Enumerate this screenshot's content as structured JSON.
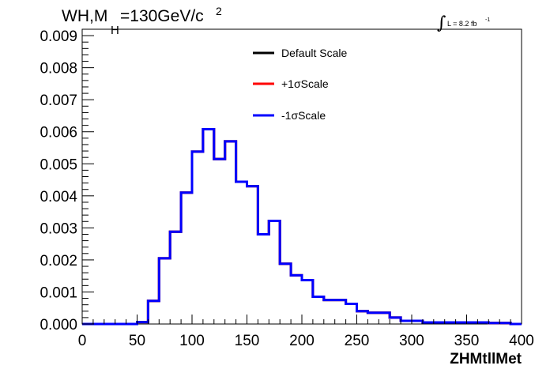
{
  "chart_data": {
    "type": "line",
    "title": {
      "main": "WH,M",
      "sub": "H",
      "value": "=130GeV/c",
      "sup": "2"
    },
    "luminosity": {
      "integral_symbol": "∫",
      "text": "L = 8.2 fb",
      "sup": "-1"
    },
    "xlabel": "ZHMtllMet",
    "ylabel": "",
    "xlim": [
      0,
      400
    ],
    "ylim": [
      0,
      0.0092
    ],
    "xticks": [
      0,
      50,
      100,
      150,
      200,
      250,
      300,
      350,
      400
    ],
    "xtick_labels": [
      "0",
      "50",
      "100",
      "150",
      "200",
      "250",
      "300",
      "350",
      "400"
    ],
    "yticks": [
      0,
      0.001,
      0.002,
      0.003,
      0.004,
      0.005,
      0.006,
      0.007,
      0.008,
      0.009
    ],
    "ytick_labels": [
      "0.000",
      "0.001",
      "0.002",
      "0.003",
      "0.004",
      "0.005",
      "0.006",
      "0.007",
      "0.008",
      "0.009"
    ],
    "bin_width": 10,
    "bin_lows": [
      0,
      10,
      20,
      30,
      40,
      50,
      60,
      70,
      80,
      90,
      100,
      110,
      120,
      130,
      140,
      150,
      160,
      170,
      180,
      190,
      200,
      210,
      220,
      230,
      240,
      250,
      260,
      270,
      280,
      290,
      300,
      310,
      320,
      330,
      340,
      350,
      360,
      370,
      380,
      390
    ],
    "legend_position": "top-center",
    "series": [
      {
        "name": "Default Scale",
        "color": "#000000",
        "values": [
          0.0,
          0.0,
          0.0,
          0.0,
          0.0,
          6e-05,
          0.00072,
          0.00205,
          0.00288,
          0.0041,
          0.00538,
          0.00608,
          0.00515,
          0.0057,
          0.00444,
          0.0043,
          0.0028,
          0.00322,
          0.00188,
          0.00152,
          0.00137,
          0.00085,
          0.00075,
          0.00075,
          0.00063,
          0.0004,
          0.00035,
          0.00035,
          0.0002,
          0.0001,
          0.0001,
          5e-05,
          5e-05,
          5e-05,
          5e-05,
          5e-05,
          5e-05,
          3e-05,
          3e-05,
          0.0
        ]
      },
      {
        "name": "+1σScale",
        "color": "#ff0000",
        "values": [
          0.0,
          0.0,
          0.0,
          0.0,
          0.0,
          6e-05,
          0.00072,
          0.00205,
          0.00288,
          0.0041,
          0.00538,
          0.00608,
          0.00515,
          0.0057,
          0.00444,
          0.0043,
          0.0028,
          0.00322,
          0.00188,
          0.00152,
          0.00137,
          0.00085,
          0.00075,
          0.00075,
          0.00063,
          0.0004,
          0.00035,
          0.00035,
          0.0002,
          0.0001,
          0.0001,
          5e-05,
          5e-05,
          5e-05,
          5e-05,
          5e-05,
          5e-05,
          3e-05,
          3e-05,
          0.0
        ]
      },
      {
        "name": "-1σScale",
        "color": "#0000ff",
        "values": [
          0.0,
          0.0,
          0.0,
          0.0,
          0.0,
          6e-05,
          0.00072,
          0.00205,
          0.00288,
          0.0041,
          0.00538,
          0.00608,
          0.00515,
          0.0057,
          0.00444,
          0.0043,
          0.0028,
          0.00322,
          0.00188,
          0.00152,
          0.00137,
          0.00085,
          0.00075,
          0.00075,
          0.00063,
          0.0004,
          0.00035,
          0.00035,
          0.0002,
          0.0001,
          0.0001,
          5e-05,
          5e-05,
          5e-05,
          5e-05,
          5e-05,
          5e-05,
          3e-05,
          3e-05,
          0.0
        ]
      }
    ]
  }
}
